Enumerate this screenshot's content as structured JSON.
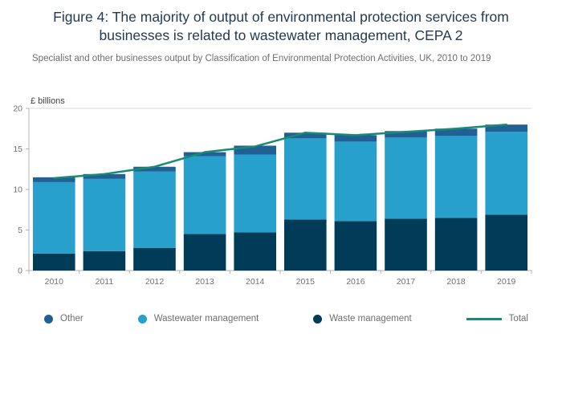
{
  "figure": {
    "title": "Figure 4: The majority of output of environmental protection services from businesses is related to wastewater management, CEPA 2",
    "subtitle": "Specialist and other businesses output by Classification of Environmental Protection Activities, UK, 2010 to 2019"
  },
  "chart_data": {
    "type": "bar",
    "stacked": true,
    "title": "Figure 4: The majority of output of environmental protection services from businesses is related to wastewater management, CEPA 2",
    "subtitle": "Specialist and other businesses output by Classification of Environmental Protection Activities, UK, 2010 to 2019",
    "ylabel": "£ billions",
    "xlabel": "",
    "ylim": [
      0,
      20
    ],
    "yticks": [
      0,
      5,
      10,
      15,
      20
    ],
    "grid": "top-line-only",
    "legend_position": "bottom",
    "categories": [
      "2010",
      "2011",
      "2012",
      "2013",
      "2014",
      "2015",
      "2016",
      "2017",
      "2018",
      "2019"
    ],
    "series": [
      {
        "name": "Waste management",
        "color": "#003C57",
        "values": [
          2.1,
          2.4,
          2.8,
          4.5,
          4.7,
          6.3,
          6.1,
          6.4,
          6.5,
          6.9
        ]
      },
      {
        "name": "Wastewater management",
        "color": "#27A0CC",
        "values": [
          8.8,
          8.9,
          9.4,
          9.6,
          9.6,
          10.0,
          9.8,
          10.0,
          10.1,
          10.2
        ]
      },
      {
        "name": "Other",
        "color": "#206095",
        "values": [
          0.6,
          0.6,
          0.6,
          0.5,
          1.1,
          0.7,
          0.8,
          0.8,
          0.9,
          0.9
        ]
      }
    ],
    "line_series": {
      "name": "Total",
      "color": "#178C72",
      "values": [
        11.4,
        11.9,
        12.8,
        14.6,
        15.3,
        17.0,
        16.7,
        17.1,
        17.5,
        18.0
      ]
    },
    "legend_items": [
      {
        "label": "Other",
        "color": "#206095",
        "marker": "dot"
      },
      {
        "label": "Wastewater management",
        "color": "#27A0CC",
        "marker": "dot"
      },
      {
        "label": "Waste management",
        "color": "#003C57",
        "marker": "dot"
      },
      {
        "label": "Total",
        "color": "#178C72",
        "marker": "line"
      }
    ]
  }
}
